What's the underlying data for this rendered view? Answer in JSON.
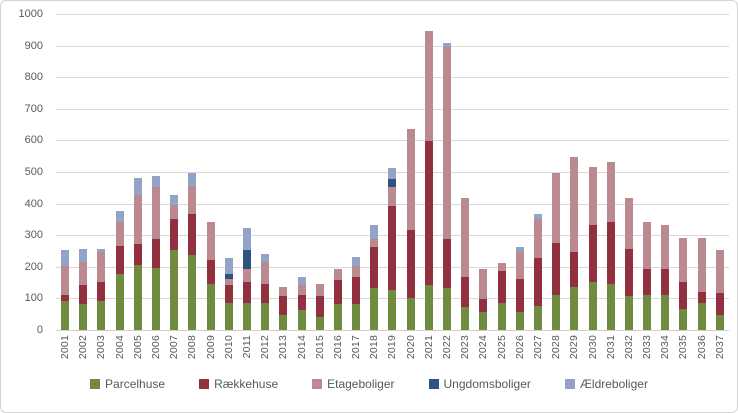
{
  "chart_data": {
    "type": "bar",
    "stacked": true,
    "title": "",
    "xlabel": "",
    "ylabel": "",
    "ylim": [
      0,
      1000
    ],
    "ytick_step": 100,
    "grid": "horizontal",
    "legend_position": "bottom",
    "categories": [
      "2001",
      "2002",
      "2003",
      "2004",
      "2005",
      "2006",
      "2007",
      "2008",
      "2009",
      "2010",
      "2011",
      "2012",
      "2013",
      "2014",
      "2015",
      "2016",
      "2017",
      "2018",
      "2019",
      "2020",
      "2021",
      "2022",
      "2023",
      "2024",
      "2025",
      "2026",
      "2027",
      "2028",
      "2029",
      "2030",
      "2031",
      "2032",
      "2033",
      "2034",
      "2035",
      "2036",
      "2037"
    ],
    "series": [
      {
        "name": "Parcelhuse",
        "color": "#6F8B3F",
        "values": [
          95,
          85,
          95,
          180,
          210,
          200,
          255,
          240,
          150,
          90,
          90,
          90,
          50,
          65,
          45,
          85,
          85,
          135,
          130,
          105,
          145,
          135,
          75,
          60,
          90,
          60,
          80,
          115,
          140,
          155,
          150,
          110,
          115,
          115,
          70,
          90,
          50
        ]
      },
      {
        "name": "Rækkehuse",
        "color": "#92303F",
        "values": [
          20,
          60,
          60,
          90,
          65,
          90,
          100,
          130,
          75,
          55,
          65,
          60,
          60,
          50,
          65,
          75,
          85,
          130,
          265,
          215,
          455,
          155,
          95,
          40,
          100,
          105,
          150,
          165,
          110,
          180,
          195,
          150,
          80,
          80,
          85,
          35,
          70
        ]
      },
      {
        "name": "Etageboliger",
        "color": "#BA8A90",
        "values": [
          90,
          75,
          95,
          75,
          155,
          165,
          45,
          90,
          120,
          20,
          40,
          70,
          30,
          30,
          40,
          35,
          35,
          25,
          60,
          320,
          350,
          610,
          250,
          95,
          25,
          85,
          125,
          220,
          300,
          185,
          190,
          160,
          150,
          140,
          140,
          170,
          135
        ]
      },
      {
        "name": "Ungdomsboliger",
        "color": "#2D5380",
        "values": [
          0,
          0,
          0,
          0,
          0,
          0,
          0,
          0,
          0,
          15,
          60,
          0,
          0,
          0,
          0,
          0,
          0,
          0,
          25,
          0,
          0,
          0,
          0,
          0,
          0,
          0,
          0,
          0,
          0,
          0,
          0,
          0,
          0,
          0,
          0,
          0,
          0
        ]
      },
      {
        "name": "Ældreboliger",
        "color": "#92A3C8",
        "values": [
          50,
          40,
          10,
          35,
          55,
          35,
          30,
          40,
          0,
          50,
          70,
          25,
          0,
          25,
          0,
          0,
          30,
          45,
          35,
          0,
          0,
          10,
          0,
          0,
          0,
          15,
          15,
          0,
          0,
          0,
          0,
          0,
          0,
          0,
          0,
          0,
          0
        ]
      }
    ],
    "y_tick_labels": [
      "0",
      "100",
      "200",
      "300",
      "400",
      "500",
      "600",
      "700",
      "800",
      "900",
      "1000"
    ]
  }
}
